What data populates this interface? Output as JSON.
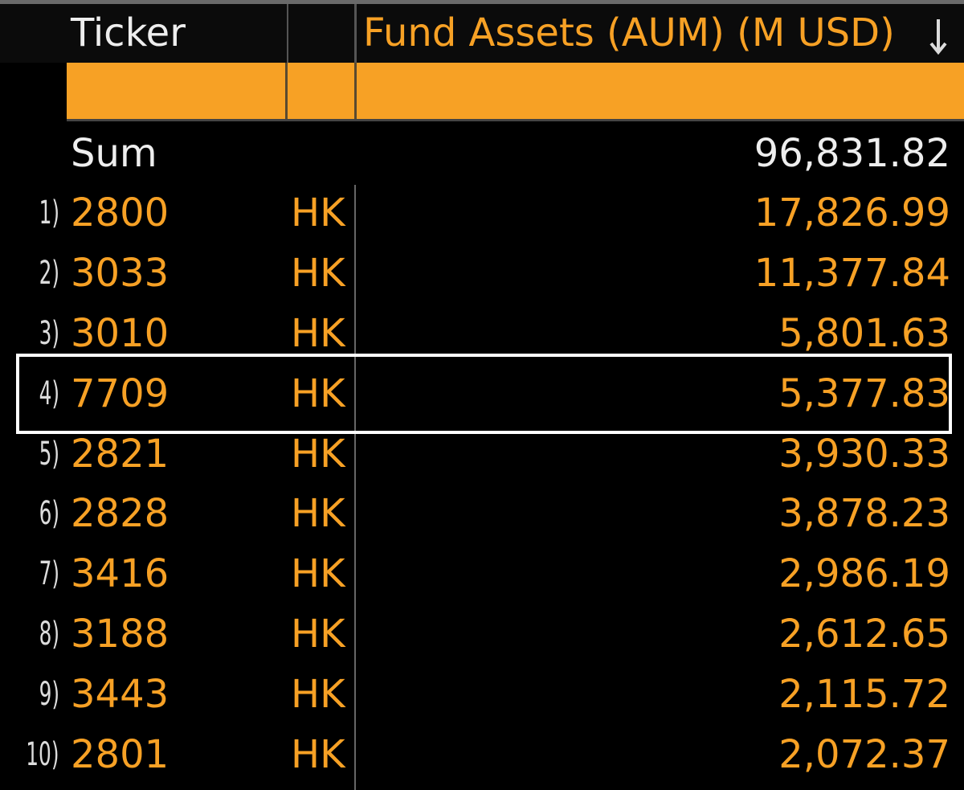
{
  "header": {
    "columns": [
      "Ticker",
      "Fund Assets (AUM) (M USD)"
    ]
  },
  "summary": {
    "label": "Sum",
    "value": "96,831.82"
  },
  "rows": [
    {
      "index": "1)",
      "ticker": "2800",
      "exchange": "HK",
      "value": "17,826.99"
    },
    {
      "index": "2)",
      "ticker": "3033",
      "exchange": "HK",
      "value": "11,377.84"
    },
    {
      "index": "3)",
      "ticker": "3010",
      "exchange": "HK",
      "value": "5,801.63"
    },
    {
      "index": "4)",
      "ticker": "7709",
      "exchange": "HK",
      "value": "5,377.83"
    },
    {
      "index": "5)",
      "ticker": "2821",
      "exchange": "HK",
      "value": "3,930.33"
    },
    {
      "index": "6)",
      "ticker": "2828",
      "exchange": "HK",
      "value": "3,878.23"
    },
    {
      "index": "7)",
      "ticker": "3416",
      "exchange": "HK",
      "value": "2,986.19"
    },
    {
      "index": "8)",
      "ticker": "3188",
      "exchange": "HK",
      "value": "2,612.65"
    },
    {
      "index": "9)",
      "ticker": "3443",
      "exchange": "HK",
      "value": "2,115.72"
    },
    {
      "index": "10)",
      "ticker": "2801",
      "exchange": "HK",
      "value": "2,072.37"
    }
  ]
}
